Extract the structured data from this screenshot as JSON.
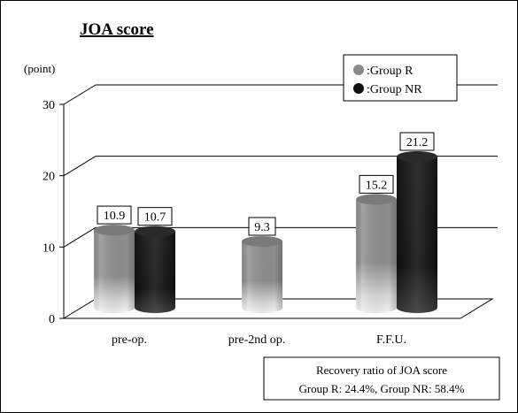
{
  "chart_data": {
    "type": "bar",
    "title": "JOA score",
    "ylabel": "(point)",
    "ylim": [
      0,
      30
    ],
    "yticks": [
      0,
      10,
      20,
      30
    ],
    "grid": true,
    "legend_position": "top-right",
    "categories": [
      "pre-op.",
      "pre-2nd op.",
      "F.F.U."
    ],
    "series": [
      {
        "name": ":Group R",
        "color": "#8a8a8a",
        "values": [
          10.9,
          9.3,
          15.2
        ],
        "labels": [
          "10.9",
          "9.3",
          "15.2"
        ]
      },
      {
        "name": ":Group NR",
        "color": "#111111",
        "values": [
          10.7,
          null,
          21.2
        ],
        "labels": [
          "10.7",
          "",
          "21.2"
        ]
      }
    ],
    "annotation": {
      "line1": "Recovery ratio of JOA score",
      "line2": "Group R: 24.4%, Group NR: 58.4%"
    }
  }
}
